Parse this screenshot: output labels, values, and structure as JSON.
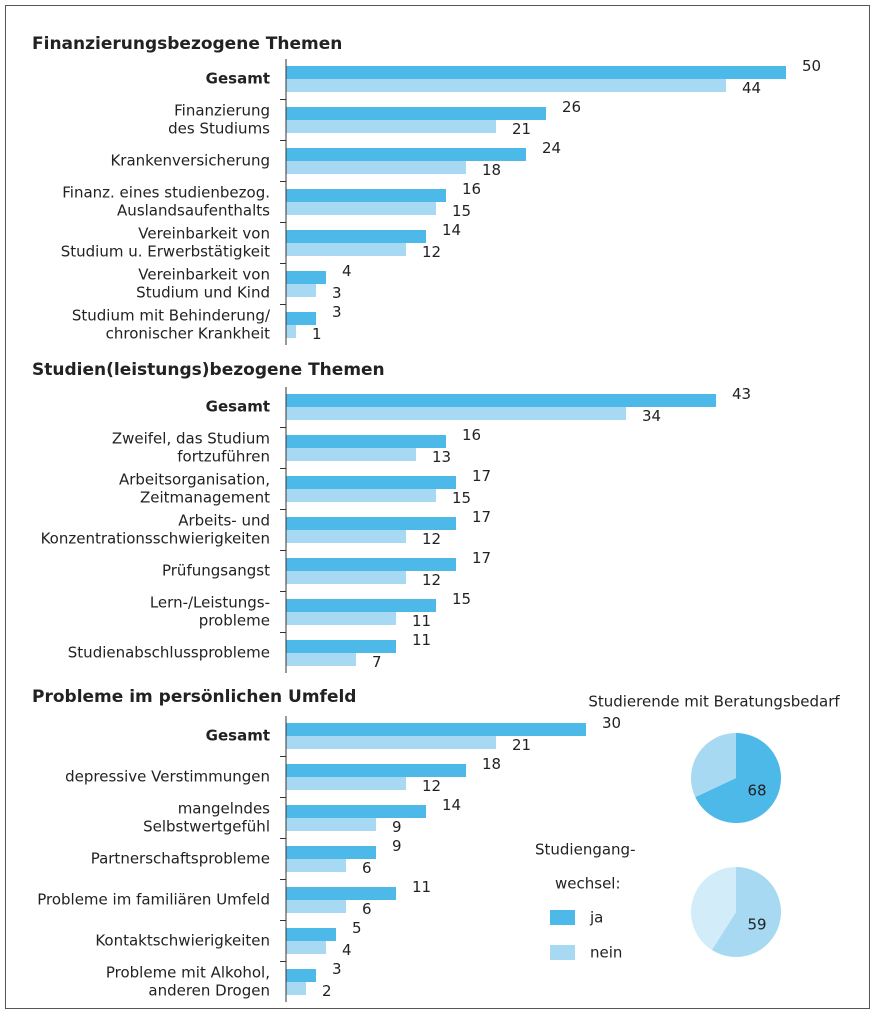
{
  "chart_data": [
    {
      "type": "hbar",
      "title": "Finanzierungsbezogene Themen",
      "categories": [
        [
          "Gesamt"
        ],
        [
          "Finanzierung",
          "des Studiums"
        ],
        [
          "Krankenversicherung"
        ],
        [
          "Finanz. eines studienbezog.",
          "Auslandsaufenthalts"
        ],
        [
          "Vereinbarkeit von",
          "Studium u. Erwerbstätigkeit"
        ],
        [
          "Vereinbarkeit von",
          "Studium und Kind"
        ],
        [
          "Studium mit Behinderung/",
          "chronischer Krankheit"
        ]
      ],
      "xlim": [
        0,
        50
      ],
      "series": [
        {
          "color": "#4cb9e9",
          "values": [
            50,
            26,
            24,
            16,
            14,
            4,
            3
          ]
        },
        {
          "color": "#a7d9f3",
          "values": [
            44,
            21,
            18,
            15,
            12,
            3,
            1
          ]
        }
      ]
    },
    {
      "type": "hbar",
      "title": "Studien(leistungs)bezogene Themen",
      "categories": [
        [
          "Gesamt"
        ],
        [
          "Zweifel, das Studium",
          "fortzuführen"
        ],
        [
          "Arbeitsorganisation,",
          "Zeitmanagement"
        ],
        [
          "Arbeits- und",
          "Konzentrationsschwierigkeiten"
        ],
        [
          "Prüfungsangst"
        ],
        [
          "Lern-/Leistungs-",
          "probleme"
        ],
        [
          "Studienabschlussprobleme"
        ]
      ],
      "xlim": [
        0,
        50
      ],
      "series": [
        {
          "color": "#4cb9e9",
          "values": [
            43,
            16,
            17,
            17,
            17,
            15,
            11
          ]
        },
        {
          "color": "#a7d9f3",
          "values": [
            34,
            13,
            15,
            12,
            12,
            11,
            7
          ]
        }
      ]
    },
    {
      "type": "hbar",
      "title": "Probleme im persönlichen Umfeld",
      "categories": [
        [
          "Gesamt"
        ],
        [
          "depressive Verstimmungen"
        ],
        [
          "mangelndes",
          "Selbstwertgefühl"
        ],
        [
          "Partnerschaftsprobleme"
        ],
        [
          "Probleme im familiären Umfeld"
        ],
        [
          "Kontaktschwierigkeiten"
        ],
        [
          "Probleme mit Alkohol,",
          "anderen Drogen"
        ]
      ],
      "xlim": [
        0,
        50
      ],
      "legend": {
        "title": [
          "Studiengang-",
          "wechsel:"
        ]
      },
      "series": [
        {
          "name": "ja",
          "color": "#4cb9e9",
          "values": [
            30,
            18,
            14,
            9,
            11,
            5,
            3
          ]
        },
        {
          "name": "nein",
          "color": "#a7d9f3",
          "values": [
            21,
            12,
            9,
            6,
            6,
            4,
            2
          ]
        }
      ]
    },
    {
      "type": "pie",
      "title": "Studierende mit Beratungsbedarf",
      "values": [
        68,
        32
      ],
      "colors": [
        "#4cb9e9",
        "#a7d9f3"
      ]
    },
    {
      "type": "pie",
      "values": [
        59,
        41
      ],
      "colors": [
        "#a7d9f3",
        "#d3ecf9"
      ]
    }
  ]
}
